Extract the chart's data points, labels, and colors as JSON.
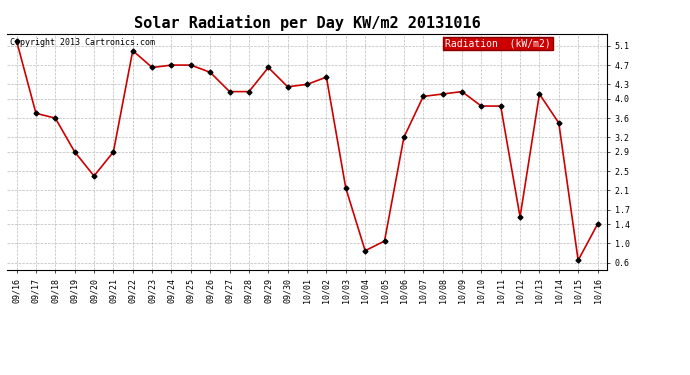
{
  "title": "Solar Radiation per Day KW/m2 20131016",
  "copyright": "Copyright 2013 Cartronics.com",
  "legend_label": "Radiation  (kW/m2)",
  "labels": [
    "09/16",
    "09/17",
    "09/18",
    "09/19",
    "09/20",
    "09/21",
    "09/22",
    "09/23",
    "09/24",
    "09/25",
    "09/26",
    "09/27",
    "09/28",
    "09/29",
    "09/30",
    "10/01",
    "10/02",
    "10/03",
    "10/04",
    "10/05",
    "10/06",
    "10/07",
    "10/08",
    "10/09",
    "10/10",
    "10/11",
    "10/12",
    "10/13",
    "10/14",
    "10/15",
    "10/16"
  ],
  "values": [
    5.2,
    3.7,
    3.6,
    2.9,
    2.4,
    2.9,
    5.0,
    4.65,
    4.7,
    4.7,
    4.55,
    4.15,
    4.15,
    4.65,
    4.25,
    4.3,
    4.45,
    2.15,
    0.85,
    1.05,
    3.2,
    4.05,
    4.1,
    4.15,
    3.85,
    3.85,
    1.55,
    4.1,
    3.5,
    0.65,
    1.4
  ],
  "line_color": "#cc0000",
  "marker": "D",
  "marker_color": "black",
  "marker_size": 2.5,
  "line_width": 1.2,
  "ylim": [
    0.45,
    5.35
  ],
  "ytick_vals": [
    0.6,
    1.0,
    1.4,
    1.7,
    2.1,
    2.5,
    2.9,
    3.2,
    3.6,
    4.0,
    4.3,
    4.7,
    5.1
  ],
  "ytick_labels": [
    "0.6",
    "1.0",
    "1.4",
    "1.7",
    "2.1",
    "2.5",
    "2.9",
    "3.2",
    "3.6",
    "4.0",
    "4.3",
    "4.7",
    "5.1"
  ],
  "bg_color": "#ffffff",
  "plot_bg_color": "#ffffff",
  "grid_color": "#aaaaaa",
  "legend_bg": "#cc0000",
  "legend_text_color": "#ffffff",
  "title_fontsize": 11,
  "axis_fontsize": 6,
  "copyright_fontsize": 6
}
